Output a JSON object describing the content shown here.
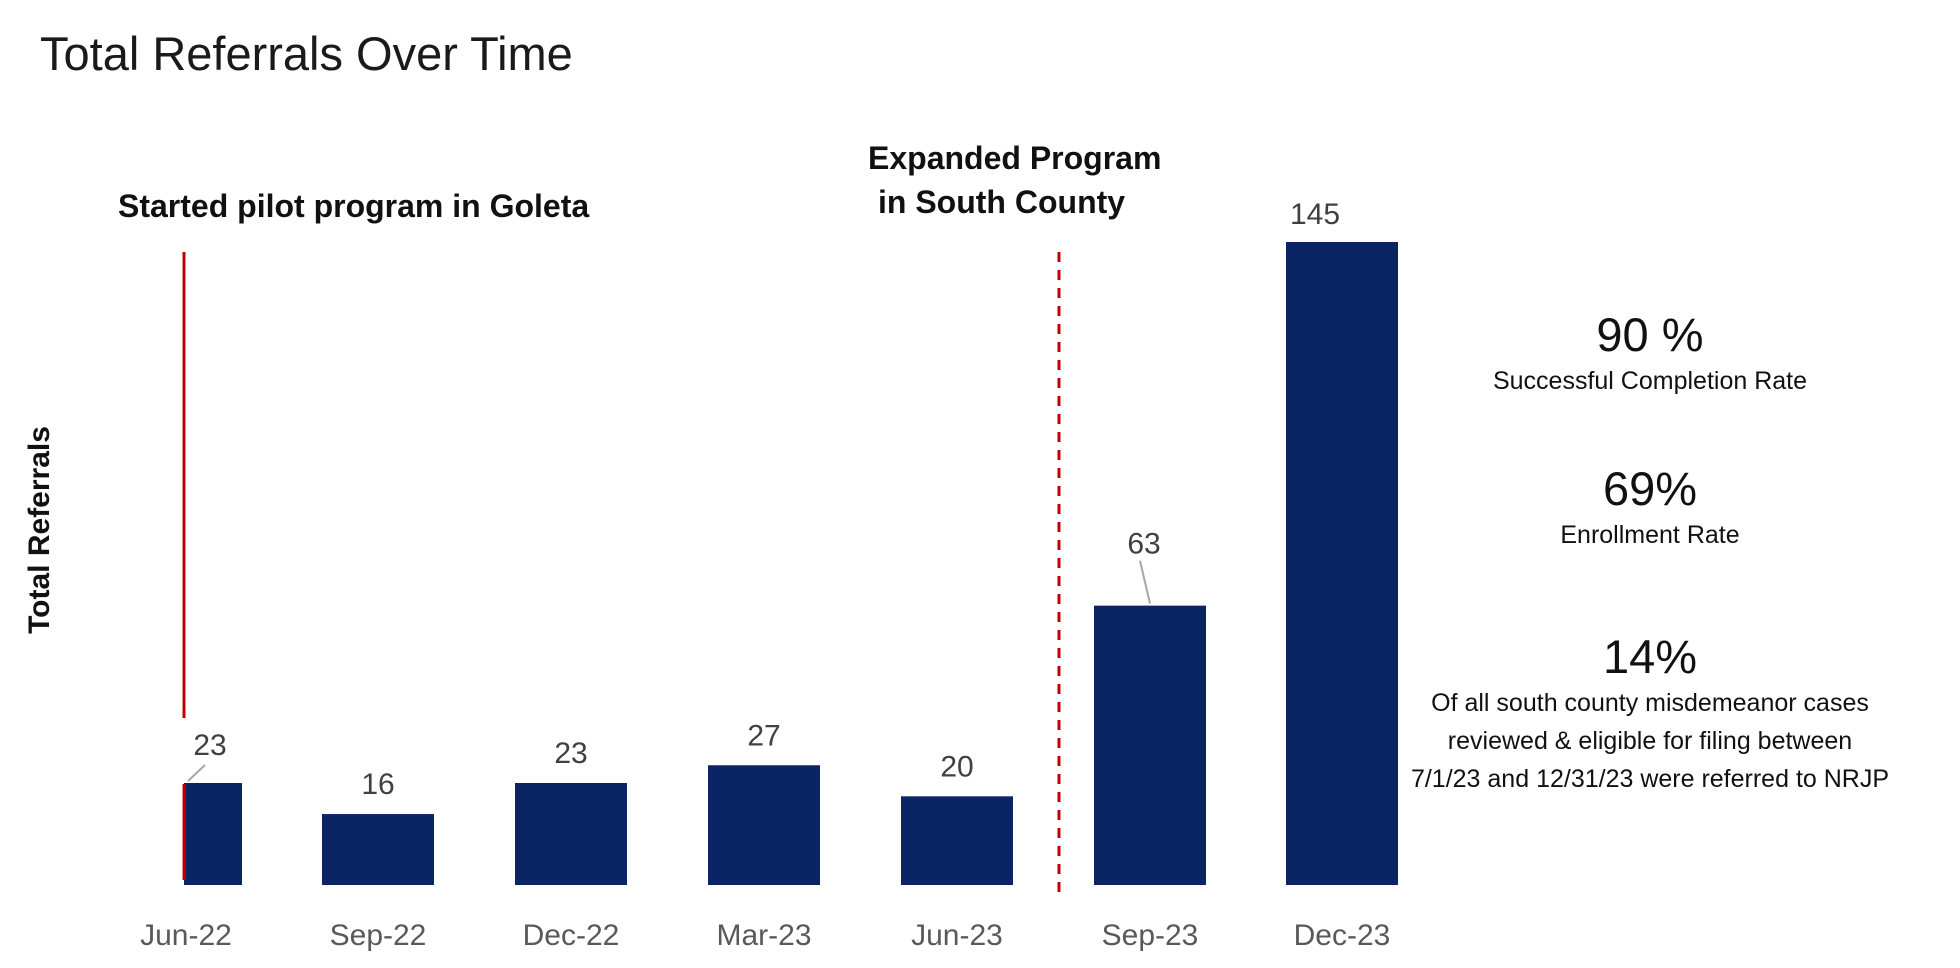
{
  "title": "Total Referrals Over Time",
  "annotations": {
    "pilot": "Started pilot program in Goleta",
    "expanded_line1": "Expanded Program",
    "expanded_line2": "in South County"
  },
  "colors": {
    "bar": "#0b2463",
    "marker": "#c00000",
    "leader": "#a6a6a6"
  },
  "stats": [
    {
      "value": "90 %",
      "description": "Successful Completion Rate"
    },
    {
      "value": "69%",
      "description": "Enrollment Rate"
    },
    {
      "value": "14%",
      "description_lines": [
        "Of all south county misdemeanor cases",
        "reviewed & eligible for filing between",
        "7/1/23 and 12/31/23 were referred to NRJP"
      ]
    }
  ],
  "chart_data": {
    "type": "bar",
    "title": "Total Referrals Over Time",
    "xlabel": "",
    "ylabel": "Total Referrals",
    "categories": [
      "Jun-22",
      "Sep-22",
      "Dec-22",
      "Mar-23",
      "Jun-23",
      "Sep-23",
      "Dec-23"
    ],
    "values": [
      23,
      16,
      23,
      27,
      20,
      63,
      145
    ],
    "data_labels": [
      "23",
      "16",
      "23",
      "27",
      "20",
      "63",
      "145"
    ],
    "ylim": [
      0,
      145
    ],
    "grid": false,
    "legend": "none",
    "markers": [
      {
        "style": "solid",
        "at_category": "Jun-22",
        "label": "Started pilot program in Goleta"
      },
      {
        "style": "dashed",
        "between_categories": [
          "Jun-23",
          "Sep-23"
        ],
        "label": "Expanded Program in South County"
      }
    ]
  }
}
